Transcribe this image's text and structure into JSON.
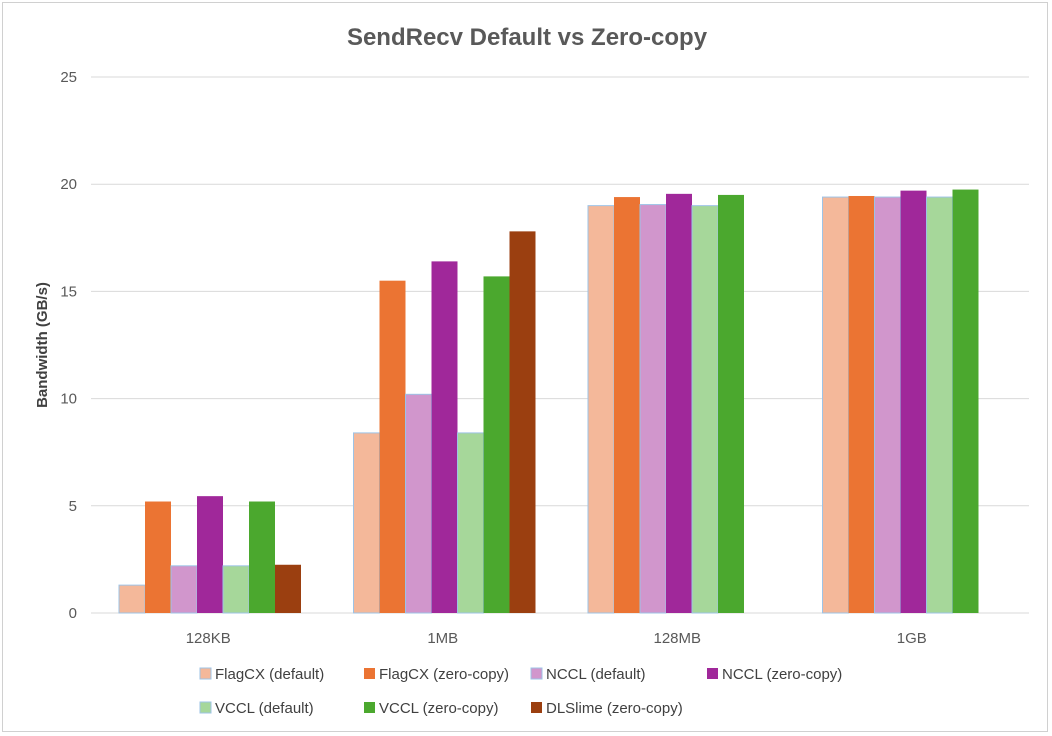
{
  "chart_data": {
    "type": "bar",
    "title": "SendRecv Default vs Zero-copy",
    "xlabel": "",
    "ylabel": "Bandwidth (GB/s)",
    "ylim": [
      0,
      25
    ],
    "yticks": [
      0,
      5,
      10,
      15,
      20,
      25
    ],
    "grid": true,
    "legend_position": "bottom",
    "categories": [
      "128KB",
      "1MB",
      "128MB",
      "1GB"
    ],
    "series": [
      {
        "name": "FlagCX (default)",
        "color": "#f4b89a",
        "values": [
          1.3,
          8.4,
          19.0,
          19.4
        ]
      },
      {
        "name": "FlagCX (zero-copy)",
        "color": "#eb7433",
        "values": [
          5.2,
          15.5,
          19.4,
          19.45
        ]
      },
      {
        "name": "NCCL (default)",
        "color": "#d196cc",
        "values": [
          2.2,
          10.2,
          19.05,
          19.4
        ]
      },
      {
        "name": "NCCL (zero-copy)",
        "color": "#a0289a",
        "values": [
          5.45,
          16.4,
          19.55,
          19.7
        ]
      },
      {
        "name": "VCCL (default)",
        "color": "#a6d79a",
        "values": [
          2.2,
          8.4,
          19.0,
          19.4
        ]
      },
      {
        "name": "VCCL (zero-copy)",
        "color": "#4ba82e",
        "values": [
          5.2,
          15.7,
          19.5,
          19.75
        ]
      },
      {
        "name": "DLSlime (zero-copy)",
        "color": "#9b3f10",
        "values": [
          2.25,
          17.8,
          null,
          null
        ]
      }
    ]
  }
}
